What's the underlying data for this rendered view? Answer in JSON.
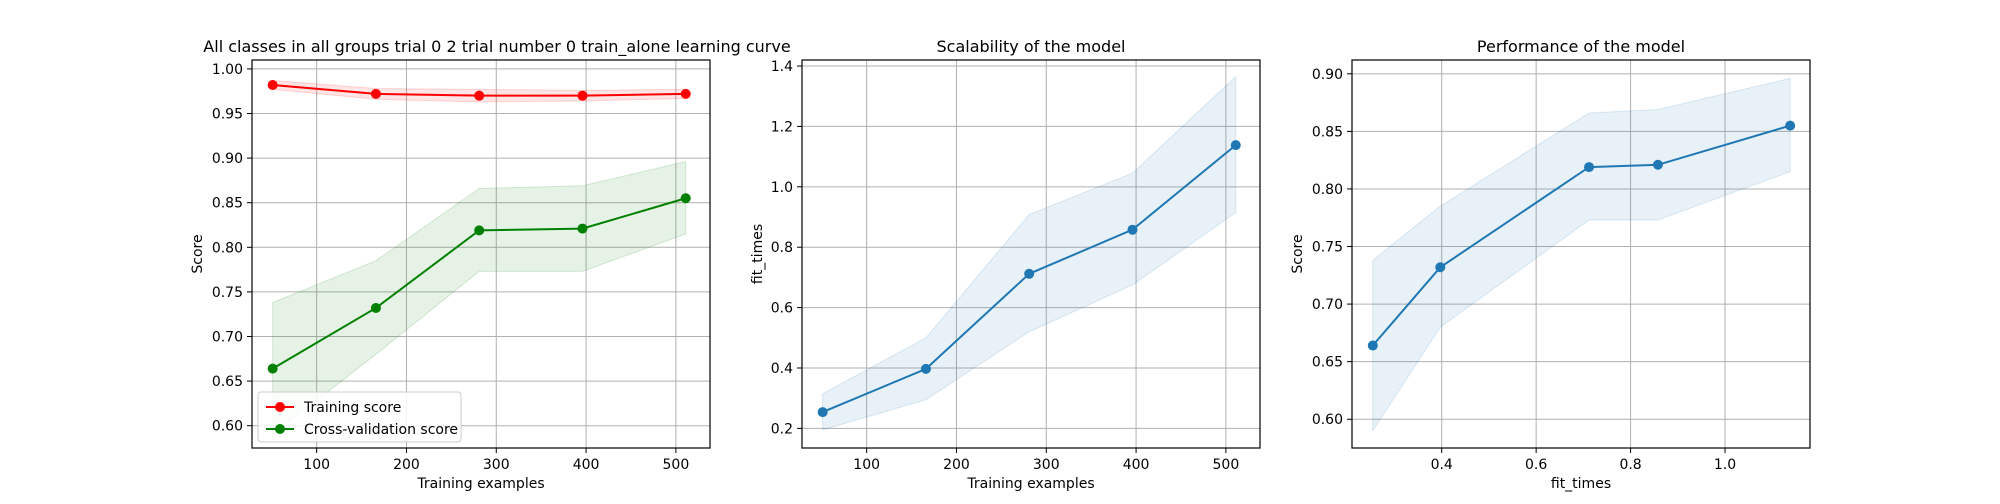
{
  "chart_data": [
    {
      "type": "line",
      "title": "All classes in all groups trial 0 2 trial number 0 train_alone learning curve",
      "xlabel": "Training examples",
      "ylabel": "Score",
      "xlim": [
        28,
        538
      ],
      "ylim": [
        0.575,
        1.01
      ],
      "xticks": [
        100,
        200,
        300,
        400,
        500
      ],
      "yticks": [
        0.6,
        0.65,
        0.7,
        0.75,
        0.8,
        0.85,
        0.9,
        0.95,
        1.0
      ],
      "ytick_decimals": 2,
      "grid": true,
      "legend": "lower-left",
      "series": [
        {
          "name": "Training score",
          "color": "#ff0000",
          "x": [
            51,
            166,
            281,
            396,
            511
          ],
          "y": [
            0.982,
            0.972,
            0.97,
            0.97,
            0.972
          ],
          "band_low": [
            0.977,
            0.966,
            0.963,
            0.964,
            0.967
          ],
          "band_high": [
            0.987,
            0.978,
            0.977,
            0.976,
            0.977
          ]
        },
        {
          "name": "Cross-validation score",
          "color": "#008000",
          "x": [
            51,
            166,
            281,
            396,
            511
          ],
          "y": [
            0.664,
            0.732,
            0.819,
            0.821,
            0.855
          ],
          "band_low": [
            0.59,
            0.68,
            0.773,
            0.773,
            0.815
          ],
          "band_high": [
            0.738,
            0.785,
            0.866,
            0.869,
            0.896
          ]
        }
      ]
    },
    {
      "type": "line",
      "title": "Scalability of the model",
      "xlabel": "Training examples",
      "ylabel": "fit_times",
      "xlim": [
        28,
        538
      ],
      "ylim": [
        0.135,
        1.42
      ],
      "xticks": [
        100,
        200,
        300,
        400,
        500
      ],
      "yticks": [
        0.2,
        0.4,
        0.6,
        0.8,
        1.0,
        1.2,
        1.4
      ],
      "ytick_decimals": 1,
      "grid": true,
      "series": [
        {
          "color": "#1f77b4",
          "x": [
            51,
            166,
            281,
            396,
            511
          ],
          "y": [
            0.254,
            0.397,
            0.712,
            0.858,
            1.138
          ],
          "band_low": [
            0.195,
            0.295,
            0.52,
            0.675,
            0.915
          ],
          "band_high": [
            0.315,
            0.5,
            0.908,
            1.045,
            1.365
          ]
        }
      ]
    },
    {
      "type": "line",
      "title": "Performance of the model",
      "xlabel": "fit_times",
      "ylabel": "Score",
      "xlim": [
        0.21,
        1.18
      ],
      "ylim": [
        0.575,
        0.912
      ],
      "xticks": [
        0.4,
        0.6,
        0.8,
        1.0
      ],
      "yticks": [
        0.6,
        0.65,
        0.7,
        0.75,
        0.8,
        0.85,
        0.9
      ],
      "ytick_decimals": 2,
      "xtick_decimals": 1,
      "grid": true,
      "series": [
        {
          "color": "#1f77b4",
          "x": [
            0.254,
            0.397,
            0.712,
            0.858,
            1.138
          ],
          "y": [
            0.664,
            0.732,
            0.819,
            0.821,
            0.855
          ],
          "band_low": [
            0.59,
            0.68,
            0.773,
            0.773,
            0.815
          ],
          "band_high": [
            0.738,
            0.785,
            0.866,
            0.869,
            0.896
          ]
        }
      ]
    }
  ]
}
